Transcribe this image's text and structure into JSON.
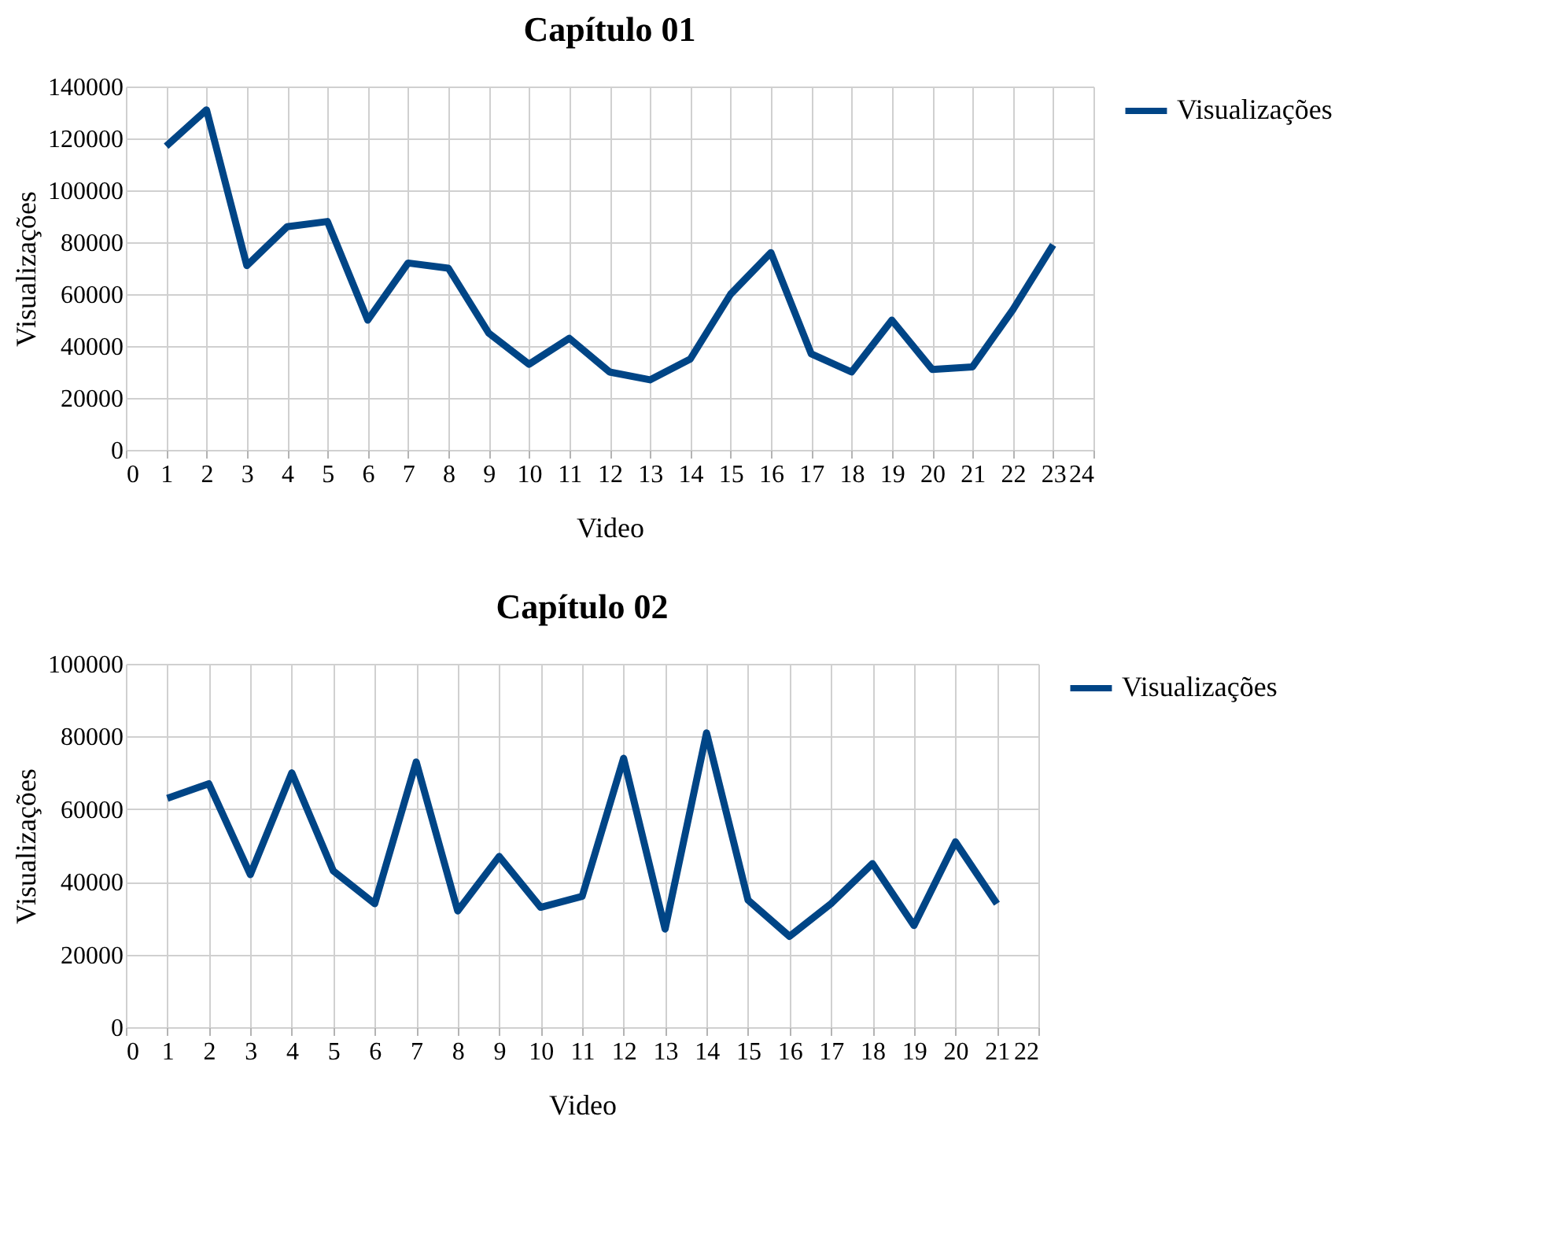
{
  "chart_data": [
    {
      "type": "line",
      "title": "Capítulo 01",
      "xlabel": "Video",
      "ylabel": "Visualizações",
      "x": [
        1,
        2,
        3,
        4,
        5,
        6,
        7,
        8,
        9,
        10,
        11,
        12,
        13,
        14,
        15,
        16,
        17,
        18,
        19,
        20,
        21,
        22,
        23
      ],
      "series": [
        {
          "name": "Visualizações",
          "color": "#004586",
          "values": [
            117000,
            131000,
            71000,
            86000,
            88000,
            50000,
            72000,
            70000,
            45000,
            33000,
            43000,
            30000,
            27000,
            35000,
            60000,
            76000,
            37000,
            30000,
            50000,
            31000,
            32000,
            54000,
            79000
          ]
        }
      ],
      "xlim": [
        0,
        24
      ],
      "xticks": [
        0,
        1,
        2,
        3,
        4,
        5,
        6,
        7,
        8,
        9,
        10,
        11,
        12,
        13,
        14,
        15,
        16,
        17,
        18,
        19,
        20,
        21,
        22,
        23,
        24
      ],
      "ylim": [
        0,
        140000
      ],
      "yticks": [
        0,
        20000,
        40000,
        60000,
        80000,
        100000,
        120000,
        140000
      ],
      "grid": true,
      "legend": "right"
    },
    {
      "type": "line",
      "title": "Capítulo 02",
      "xlabel": "Video",
      "ylabel": "Visualizações",
      "x": [
        1,
        2,
        3,
        4,
        5,
        6,
        7,
        8,
        9,
        10,
        11,
        12,
        13,
        14,
        15,
        16,
        17,
        18,
        19,
        20,
        21
      ],
      "series": [
        {
          "name": "Visualizações",
          "color": "#004586",
          "values": [
            63000,
            67000,
            42000,
            70000,
            43000,
            34000,
            73000,
            32000,
            47000,
            33000,
            36000,
            74000,
            27000,
            81000,
            35000,
            25000,
            34000,
            45000,
            28000,
            51000,
            34000
          ]
        }
      ],
      "xlim": [
        0,
        22
      ],
      "xticks": [
        0,
        1,
        2,
        3,
        4,
        5,
        6,
        7,
        8,
        9,
        10,
        11,
        12,
        13,
        14,
        15,
        16,
        17,
        18,
        19,
        20,
        21,
        22
      ],
      "ylim": [
        0,
        100000
      ],
      "yticks": [
        0,
        20000,
        40000,
        60000,
        80000,
        100000
      ],
      "grid": true,
      "legend": "right"
    }
  ]
}
